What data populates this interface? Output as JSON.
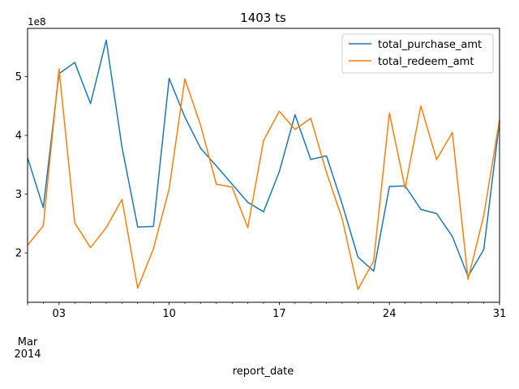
{
  "chart_data": {
    "type": "line",
    "title": "1403 ts",
    "xlabel": "report_date",
    "ylabel": "",
    "y_offset_label": "1e8",
    "y_scale": 100000000,
    "x_start": "2014-03-01",
    "x_end": "2014-03-31",
    "xlim": [
      "2014-03-01",
      "2014-03-31"
    ],
    "ylim": [
      1.16,
      5.82
    ],
    "x_ticks": [
      {
        "date": "2014-03-01",
        "label": "Mar\n2014",
        "major": true
      },
      {
        "date": "2014-03-03",
        "label": "03",
        "major": false
      },
      {
        "date": "2014-03-10",
        "label": "10",
        "major": false
      },
      {
        "date": "2014-03-17",
        "label": "17",
        "major": false
      },
      {
        "date": "2014-03-24",
        "label": "24",
        "major": false
      },
      {
        "date": "2014-03-31",
        "label": "31",
        "major": false
      }
    ],
    "y_ticks": [
      {
        "value": 2,
        "label": "2"
      },
      {
        "value": 3,
        "label": "3"
      },
      {
        "value": 4,
        "label": "4"
      },
      {
        "value": 5,
        "label": "5"
      }
    ],
    "grid": false,
    "legend_position": "top-right",
    "x": [
      "2014-03-01",
      "2014-03-02",
      "2014-03-03",
      "2014-03-04",
      "2014-03-05",
      "2014-03-06",
      "2014-03-07",
      "2014-03-08",
      "2014-03-09",
      "2014-03-10",
      "2014-03-11",
      "2014-03-12",
      "2014-03-13",
      "2014-03-14",
      "2014-03-15",
      "2014-03-16",
      "2014-03-17",
      "2014-03-18",
      "2014-03-19",
      "2014-03-20",
      "2014-03-21",
      "2014-03-22",
      "2014-03-23",
      "2014-03-24",
      "2014-03-25",
      "2014-03-26",
      "2014-03-27",
      "2014-03-28",
      "2014-03-29",
      "2014-03-30",
      "2014-03-31"
    ],
    "series": [
      {
        "name": "total_purchase_amt",
        "color": "#1f77b4",
        "values": [
          3.62,
          2.77,
          5.05,
          5.24,
          4.54,
          5.62,
          3.8,
          2.44,
          2.45,
          4.97,
          4.31,
          3.78,
          3.48,
          3.17,
          2.86,
          2.7,
          3.38,
          4.35,
          3.59,
          3.65,
          2.83,
          1.93,
          1.69,
          3.13,
          3.14,
          2.74,
          2.67,
          2.28,
          1.6,
          2.06,
          4.24
        ]
      },
      {
        "name": "total_redeem_amt",
        "color": "#ff7f0e",
        "values": [
          2.13,
          2.46,
          5.13,
          2.51,
          2.09,
          2.43,
          2.91,
          1.4,
          2.07,
          3.09,
          4.96,
          4.17,
          3.17,
          3.12,
          2.43,
          3.91,
          4.41,
          4.1,
          4.29,
          3.37,
          2.58,
          1.38,
          1.86,
          4.38,
          3.1,
          4.5,
          3.59,
          4.05,
          1.55,
          2.64,
          4.27
        ]
      }
    ]
  }
}
